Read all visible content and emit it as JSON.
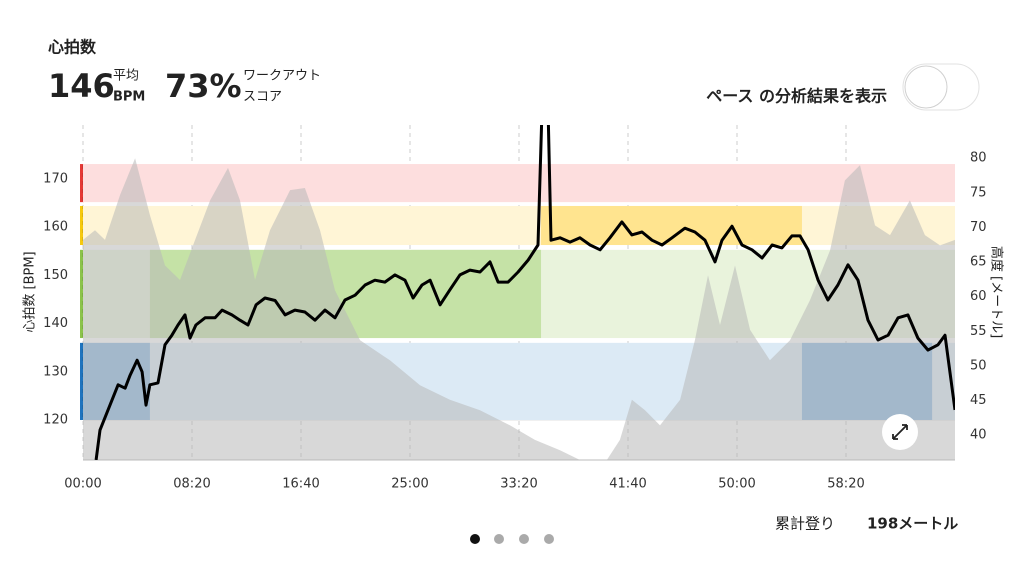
{
  "header": {
    "title": "心拍数",
    "avg_value": "146",
    "avg_label_1": "平均",
    "avg_label_2": "BPM",
    "score_value": "73%",
    "score_label_1": "ワークアウト",
    "score_label_2": "スコア",
    "toggle_label": "ペース の分析結果を表示"
  },
  "chart_data": {
    "type": "line",
    "ylabel": "心拍数 [BPM]",
    "y2label": "高度 [メートル]",
    "xlim": [
      0,
      4000
    ],
    "xticks": [
      {
        "value": 0,
        "label": "00:00"
      },
      {
        "value": 500,
        "label": "08:20"
      },
      {
        "value": 1000,
        "label": "16:40"
      },
      {
        "value": 1500,
        "label": "25:00"
      },
      {
        "value": 2000,
        "label": "33:20"
      },
      {
        "value": 2500,
        "label": "41:40"
      },
      {
        "value": 3000,
        "label": "50:00"
      },
      {
        "value": 3500,
        "label": "58:20"
      }
    ],
    "ylim": [
      111.7,
      181.2
    ],
    "yticks": [
      120,
      130,
      140,
      150,
      160,
      170
    ],
    "y2lim": [
      36.4,
      84.8
    ],
    "y2ticks": [
      40,
      45,
      50,
      55,
      60,
      65,
      70,
      75,
      80
    ],
    "grid": true,
    "zones": [
      {
        "lo": 120,
        "hi": 136,
        "color": "#dceaf5",
        "edge": "#1e73be",
        "dark": "#8bb8e3"
      },
      {
        "lo": 137,
        "hi": 155.3,
        "color": "#e9f3dc",
        "edge": "#8bc34a",
        "dark": "#c5e2a6"
      },
      {
        "lo": 156.3,
        "hi": 164.4,
        "color": "#fff5d6",
        "edge": "#f6c90e",
        "dark": "#ffe48f"
      },
      {
        "lo": 165.2,
        "hi": 173.1,
        "color": "#fddede",
        "edge": "#e53935",
        "dark": "#fddede"
      }
    ],
    "segments": [
      {
        "start": 0,
        "end": 307,
        "zone": 0
      },
      {
        "start": 307,
        "end": 2101,
        "zone": 1
      },
      {
        "start": 2101,
        "end": 3298,
        "zone": 2
      },
      {
        "start": 3298,
        "end": 3895,
        "zone": 0
      }
    ],
    "series": [
      {
        "name": "高度",
        "axis": "y2",
        "color": "#b8b8b8",
        "x": [
          0,
          55,
          101,
          170,
          239,
          307,
          376,
          445,
          514,
          583,
          665,
          720,
          789,
          858,
          950,
          1018,
          1087,
          1156,
          1271,
          1408,
          1546,
          1683,
          1821,
          1959,
          2073,
          2188,
          2280,
          2372,
          2463,
          2518,
          2578,
          2647,
          2739,
          2807,
          2867,
          2922,
          2991,
          3060,
          3151,
          3243,
          3335,
          3427,
          3495,
          3564,
          3633,
          3702,
          3793,
          3862,
          3931,
          4000
        ],
        "values": [
          68.2,
          69.6,
          68.2,
          74.7,
          80,
          71.8,
          64.5,
          62.4,
          68.2,
          73.9,
          78.6,
          73.9,
          62.4,
          69.6,
          75.4,
          75.7,
          69.6,
          60.9,
          53.7,
          50.8,
          47.2,
          45.1,
          43.6,
          41.4,
          39.3,
          37.8,
          36.4,
          34.9,
          39.3,
          45.1,
          43.6,
          41.4,
          45.1,
          53.7,
          63.1,
          55.9,
          64.5,
          55.2,
          50.8,
          53.7,
          59.5,
          66.7,
          76.8,
          79,
          70.3,
          68.9,
          73.9,
          68.9,
          67.4,
          68.2
        ]
      },
      {
        "name": "心拍数",
        "axis": "y",
        "color": "#000000",
        "x": [
          60,
          78,
          124,
          161,
          193,
          216,
          248,
          271,
          289,
          307,
          344,
          376,
          408,
          436,
          468,
          491,
          518,
          560,
          606,
          638,
          683,
          720,
          757,
          794,
          835,
          881,
          927,
          972,
          1018,
          1064,
          1110,
          1156,
          1202,
          1248,
          1294,
          1339,
          1385,
          1431,
          1477,
          1514,
          1555,
          1592,
          1638,
          1683,
          1729,
          1775,
          1821,
          1867,
          1904,
          1950,
          1996,
          2042,
          2087,
          2106,
          2133,
          2147,
          2188,
          2234,
          2280,
          2326,
          2372,
          2417,
          2472,
          2518,
          2564,
          2610,
          2656,
          2702,
          2761,
          2807,
          2853,
          2899,
          2931,
          2977,
          3023,
          3069,
          3115,
          3161,
          3206,
          3252,
          3289,
          3326,
          3372,
          3417,
          3463,
          3509,
          3555,
          3601,
          3647,
          3693,
          3739,
          3784,
          3830,
          3876,
          3922,
          3954,
          4000
        ],
        "values": [
          111.7,
          117.9,
          123.1,
          127.3,
          126.6,
          129.3,
          132.4,
          130,
          123.1,
          127.3,
          127.7,
          135.6,
          137.6,
          139.7,
          141.8,
          137,
          139.7,
          141.2,
          141.2,
          142.8,
          141.8,
          140.7,
          139.7,
          143.9,
          145.3,
          144.8,
          141.8,
          142.8,
          142.4,
          140.7,
          142.8,
          141.2,
          144.9,
          145.9,
          148,
          149,
          148.6,
          150.1,
          149,
          145.3,
          148,
          149,
          143.9,
          147,
          150.1,
          151.1,
          150.7,
          152.8,
          148.6,
          148.6,
          150.7,
          153.2,
          156.3,
          185,
          185,
          157.3,
          157.8,
          156.9,
          157.8,
          156.3,
          155.3,
          157.8,
          161.1,
          158.4,
          159,
          157.3,
          156.3,
          157.8,
          159.8,
          159,
          157.3,
          152.8,
          157.3,
          160.2,
          156.3,
          155.3,
          153.6,
          156.3,
          155.7,
          158.2,
          158.2,
          155.3,
          149,
          144.9,
          148,
          152.2,
          149,
          140.7,
          136.6,
          137.6,
          141.2,
          141.8,
          137,
          134.5,
          135.6,
          137.6,
          122.1
        ]
      }
    ]
  },
  "footer": {
    "label": "累計登り",
    "value": "198メートル"
  }
}
